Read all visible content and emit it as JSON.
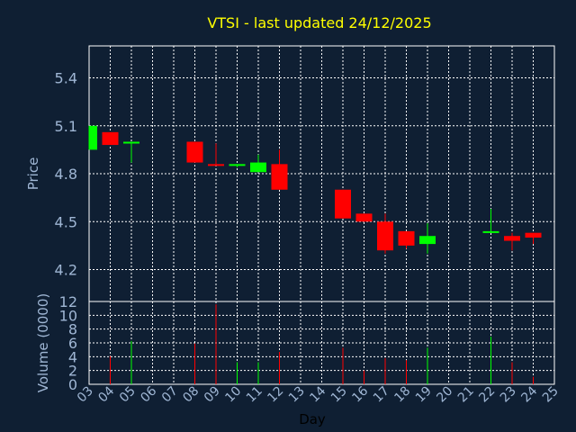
{
  "chart_data": {
    "type": "candlestick",
    "title": "VTSI - last updated 24/12/2025",
    "xlabel": "Day",
    "grid": true,
    "colors": {
      "background": "#0f1f33",
      "grid": "#ffffff",
      "up": "#00ff00",
      "down": "#ff0000",
      "title": "#ffff00",
      "axis_text": "#9fb6d4",
      "xlabel_text": "#000000"
    },
    "x_ticks": [
      "03",
      "04",
      "05",
      "06",
      "07",
      "08",
      "09",
      "10",
      "11",
      "12",
      "13",
      "14",
      "15",
      "16",
      "17",
      "18",
      "19",
      "20",
      "21",
      "22",
      "23",
      "24",
      "25"
    ],
    "price_panel": {
      "ylabel": "Price",
      "ylim": [
        4.0,
        5.6
      ],
      "yticks": [
        4.2,
        4.5,
        4.8,
        5.1,
        5.4
      ],
      "ytick_labels": [
        "4.2",
        "4.5",
        "4.8",
        "5.1",
        "5.4"
      ]
    },
    "volume_panel": {
      "ylabel": "Volume (0000)",
      "ylim": [
        0,
        12
      ],
      "yticks": [
        0,
        2,
        4,
        6,
        8,
        10,
        12
      ],
      "ytick_labels": [
        "0",
        "2",
        "4",
        "6",
        "8",
        "10",
        "12"
      ]
    },
    "candles": [
      {
        "day": 3,
        "open": 4.95,
        "high": 5.1,
        "low": 4.95,
        "close": 5.1
      },
      {
        "day": 4,
        "open": 5.06,
        "high": 5.06,
        "low": 4.98,
        "close": 4.98
      },
      {
        "day": 5,
        "open": 4.99,
        "high": 5.0,
        "low": 4.87,
        "close": 5.0
      },
      {
        "day": 8,
        "open": 5.0,
        "high": 5.0,
        "low": 4.87,
        "close": 4.87
      },
      {
        "day": 9,
        "open": 4.86,
        "high": 4.99,
        "low": 4.85,
        "close": 4.85
      },
      {
        "day": 10,
        "open": 4.85,
        "high": 4.86,
        "low": 4.84,
        "close": 4.86
      },
      {
        "day": 11,
        "open": 4.81,
        "high": 4.92,
        "low": 4.81,
        "close": 4.87
      },
      {
        "day": 12,
        "open": 4.86,
        "high": 4.95,
        "low": 4.7,
        "close": 4.7
      },
      {
        "day": 15,
        "open": 4.7,
        "high": 4.7,
        "low": 4.52,
        "close": 4.52
      },
      {
        "day": 16,
        "open": 4.55,
        "high": 4.55,
        "low": 4.5,
        "close": 4.5
      },
      {
        "day": 17,
        "open": 4.5,
        "high": 4.55,
        "low": 4.3,
        "close": 4.32
      },
      {
        "day": 18,
        "open": 4.44,
        "high": 4.44,
        "low": 4.33,
        "close": 4.35
      },
      {
        "day": 19,
        "open": 4.36,
        "high": 4.49,
        "low": 4.3,
        "close": 4.41
      },
      {
        "day": 22,
        "open": 4.43,
        "high": 4.58,
        "low": 4.43,
        "close": 4.44
      },
      {
        "day": 23,
        "open": 4.41,
        "high": 4.43,
        "low": 4.32,
        "close": 4.38
      },
      {
        "day": 24,
        "open": 4.43,
        "high": 4.43,
        "low": 4.36,
        "close": 4.4
      }
    ],
    "volume": [
      {
        "day": 3,
        "value": 0.0,
        "up": true
      },
      {
        "day": 4,
        "value": 4.1,
        "up": false
      },
      {
        "day": 5,
        "value": 6.3,
        "up": true
      },
      {
        "day": 8,
        "value": 5.9,
        "up": false
      },
      {
        "day": 9,
        "value": 11.6,
        "up": false
      },
      {
        "day": 10,
        "value": 3.2,
        "up": true
      },
      {
        "day": 11,
        "value": 3.2,
        "up": true
      },
      {
        "day": 12,
        "value": 4.7,
        "up": false
      },
      {
        "day": 15,
        "value": 5.3,
        "up": false
      },
      {
        "day": 16,
        "value": 2.0,
        "up": false
      },
      {
        "day": 17,
        "value": 3.8,
        "up": false
      },
      {
        "day": 18,
        "value": 3.5,
        "up": false
      },
      {
        "day": 19,
        "value": 5.3,
        "up": true
      },
      {
        "day": 22,
        "value": 6.9,
        "up": true
      },
      {
        "day": 23,
        "value": 3.2,
        "up": false
      },
      {
        "day": 24,
        "value": 1.1,
        "up": false
      }
    ]
  }
}
